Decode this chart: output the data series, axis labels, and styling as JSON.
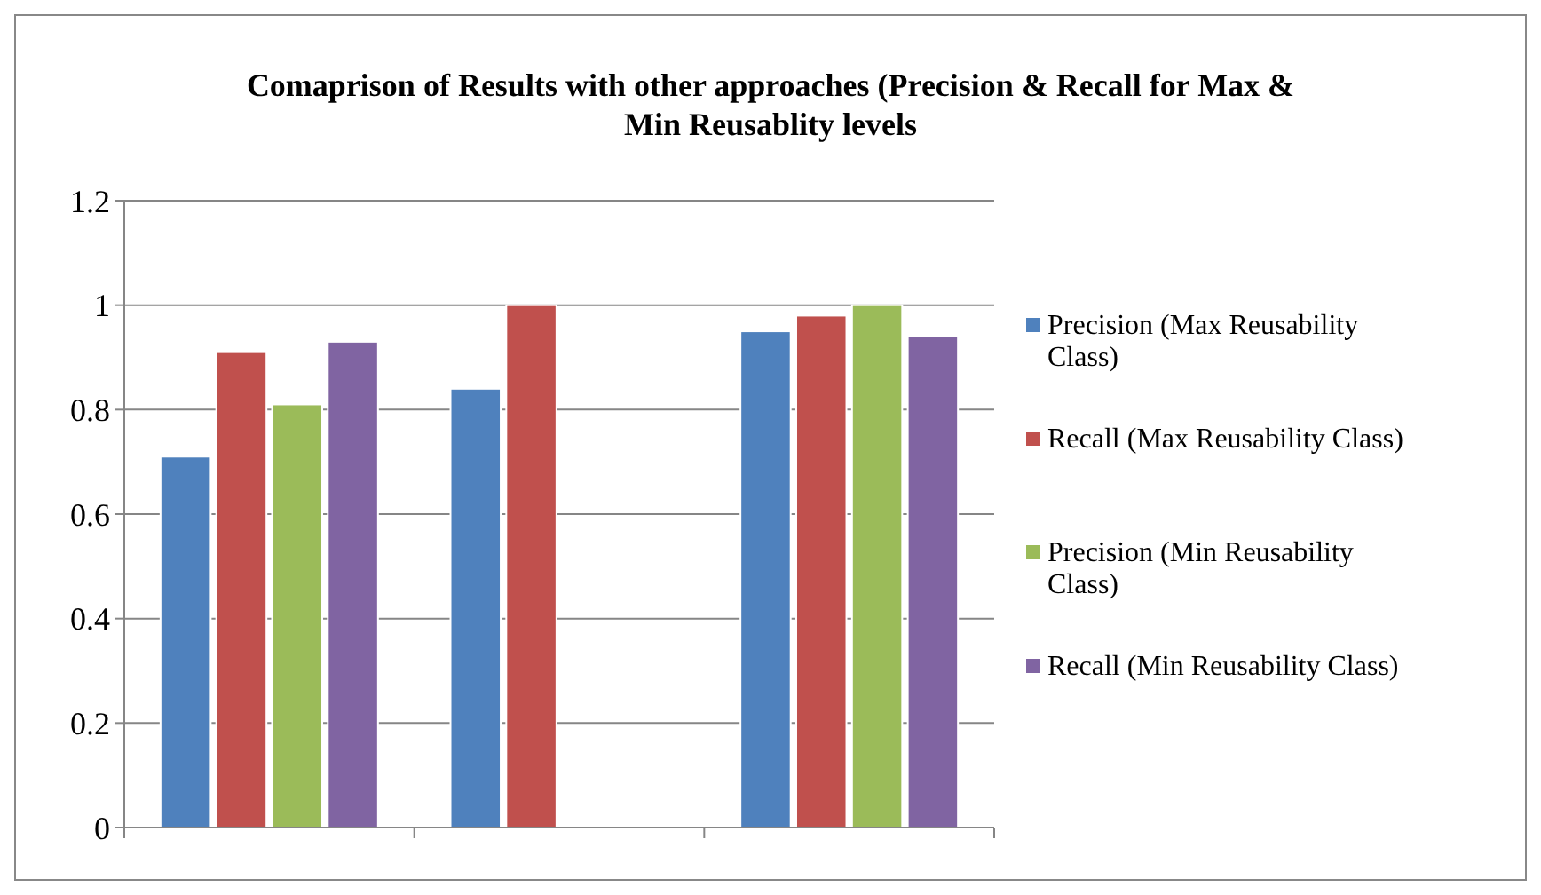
{
  "chart_data": {
    "type": "bar",
    "title": "Comaprison of Results with other approaches (Precision & Recall for Max & Min Reusablity levels",
    "categories": [
      null,
      null,
      null
    ],
    "series": [
      {
        "name": "Precision (Max Reusability Class)",
        "color": "#4f81bd",
        "values": [
          0.71,
          0.84,
          0.95
        ]
      },
      {
        "name": "Recall (Max Reusability Class)",
        "color": "#c0504d",
        "values": [
          0.91,
          1.0,
          0.98
        ]
      },
      {
        "name": "Precision (Min Reusability Class)",
        "color": "#9bbb59",
        "values": [
          0.81,
          null,
          1.0
        ]
      },
      {
        "name": "Recall (Min Reusability Class)",
        "color": "#8064a2",
        "values": [
          0.93,
          null,
          0.94
        ]
      }
    ],
    "ylim": [
      0,
      1.2
    ],
    "yticks": [
      0,
      0.2,
      0.4,
      0.6,
      0.8,
      1,
      1.2
    ],
    "grid": "y",
    "legend": "right"
  }
}
